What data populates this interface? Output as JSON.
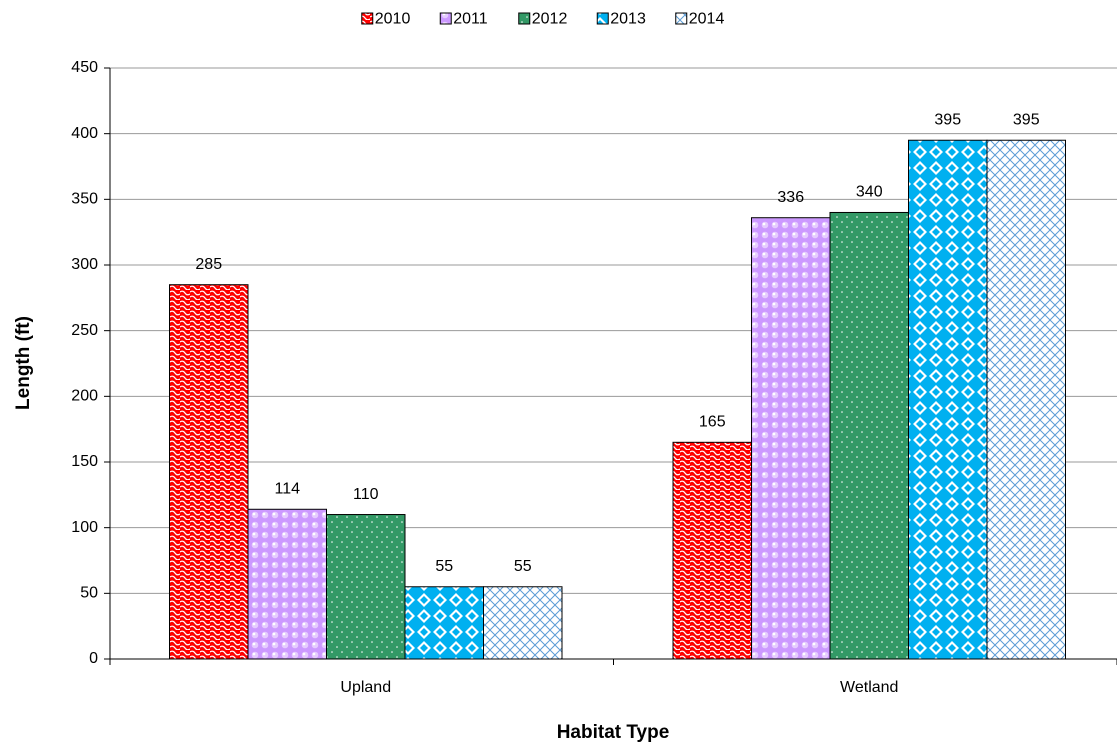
{
  "chart_data": {
    "type": "bar",
    "categories": [
      "Upland",
      "Wetland"
    ],
    "series": [
      {
        "name": "2010",
        "color": "#ff0000",
        "values": [
          285,
          165
        ]
      },
      {
        "name": "2011",
        "color": "#cc99ff",
        "values": [
          114,
          336
        ]
      },
      {
        "name": "2012",
        "color": "#339966",
        "values": [
          110,
          340
        ]
      },
      {
        "name": "2013",
        "color": "#00b0f0",
        "values": [
          55,
          395
        ]
      },
      {
        "name": "2014",
        "color": "#ffffff",
        "values": [
          55,
          395
        ]
      }
    ],
    "xlabel": "Habitat Type",
    "ylabel": "Length (ft)",
    "ylim": [
      0,
      450
    ],
    "yticks": [
      0,
      50,
      100,
      150,
      200,
      250,
      300,
      350,
      400,
      450
    ],
    "grid": true,
    "legend": "top"
  }
}
